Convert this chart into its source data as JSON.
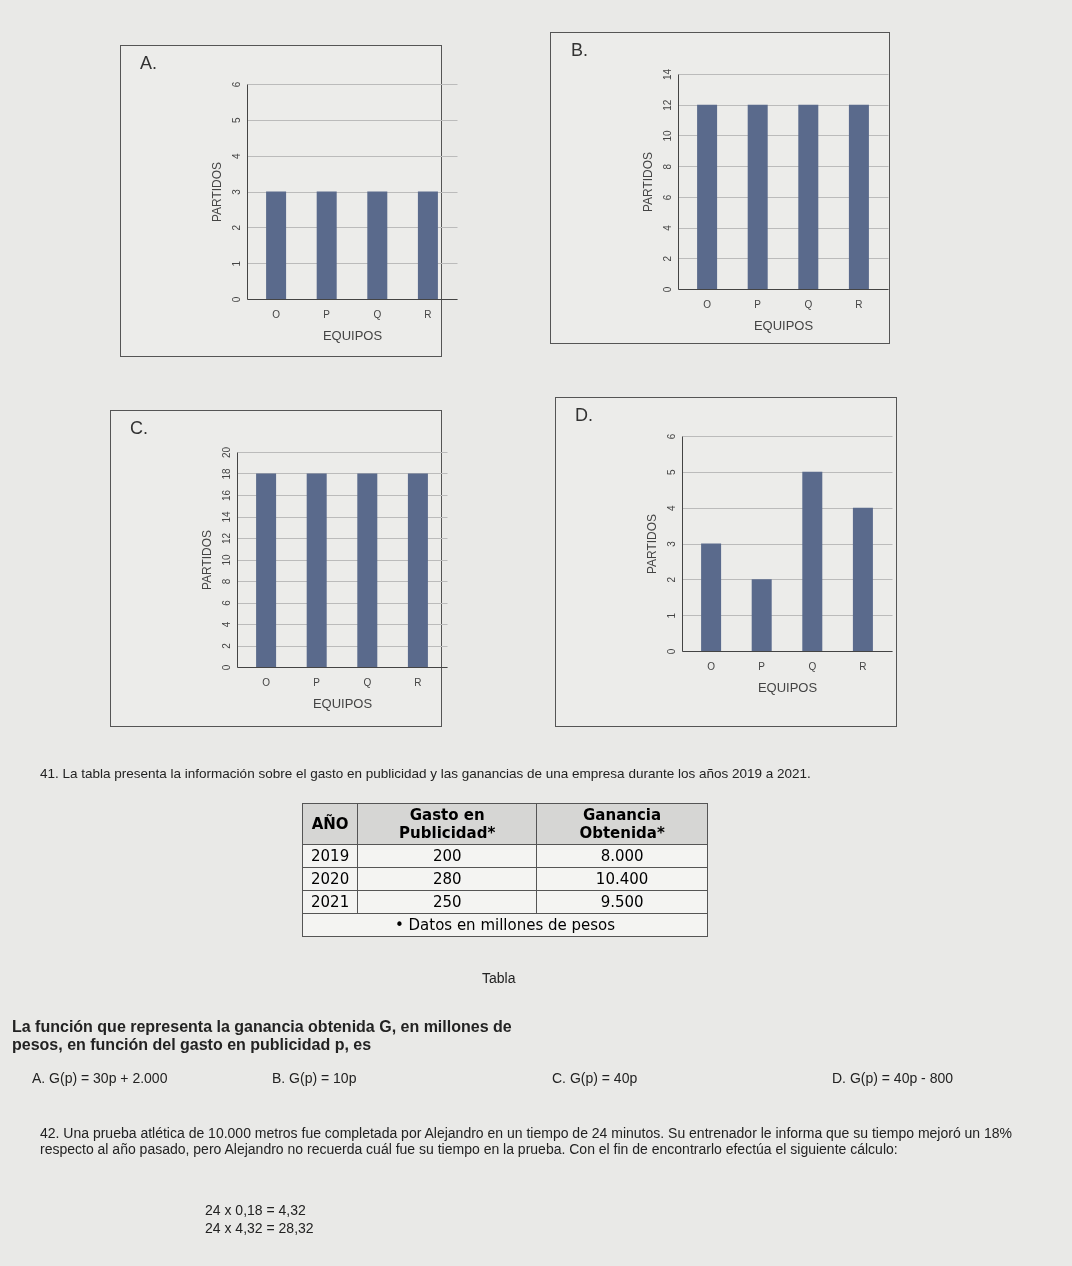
{
  "chart_data": [
    {
      "type": "bar",
      "title": "A.",
      "xlabel": "EQUIPOS",
      "ylabel": "PARTIDOS",
      "categories": [
        "O",
        "P",
        "Q",
        "R"
      ],
      "values": [
        3,
        3,
        3,
        3
      ],
      "color": "#5a6a8c",
      "ylim": [
        0,
        6
      ],
      "yticks": [
        0,
        1,
        2,
        3,
        4,
        5,
        6
      ],
      "grid": "y"
    },
    {
      "type": "bar",
      "title": "B.",
      "xlabel": "EQUIPOS",
      "ylabel": "PARTIDOS",
      "categories": [
        "O",
        "P",
        "Q",
        "R"
      ],
      "values": [
        12,
        12,
        12,
        12
      ],
      "color": "#5a6a8c",
      "ylim": [
        0,
        14
      ],
      "yticks": [
        0,
        2,
        4,
        6,
        8,
        10,
        12,
        14
      ],
      "grid": "y"
    },
    {
      "type": "bar",
      "title": "C.",
      "xlabel": "EQUIPOS",
      "ylabel": "PARTIDOS",
      "categories": [
        "O",
        "P",
        "Q",
        "R"
      ],
      "values": [
        18,
        18,
        18,
        18
      ],
      "color": "#5a6a8c",
      "ylim": [
        0,
        20
      ],
      "yticks": [
        0,
        2,
        4,
        6,
        8,
        10,
        12,
        14,
        16,
        18,
        20
      ],
      "grid": "y"
    },
    {
      "type": "bar",
      "title": "D.",
      "xlabel": "EQUIPOS",
      "ylabel": "PARTIDOS",
      "categories": [
        "O",
        "P",
        "Q",
        "R"
      ],
      "values": [
        3,
        2,
        5,
        4
      ],
      "color": "#5a6a8c",
      "ylim": [
        0,
        6
      ],
      "yticks": [
        0,
        1,
        2,
        3,
        4,
        5,
        6
      ],
      "grid": "y"
    },
    {
      "type": "other",
      "title": "41. La tabla presenta la información sobre el gasto en publicidad y las ganancias de una empresa durante los años 2019 a 2021.",
      "annotations": [
        "AÑO",
        "Gasto en Publicidad*",
        "Ganancia Obtenida*",
        "2019",
        "200",
        "8.000",
        "2020",
        "280",
        "10.400",
        "2021",
        "250",
        "9.500",
        "• Datos en millones de pesos",
        "Tabla",
        "La función que representa la ganancia obtenida G, en millones de pesos, en función del gasto en publicidad p, es",
        "A. G(p) = 30p + 2.000",
        "B. G(p) = 10p",
        "C. G(p) = 40p",
        "D. G(p) = 40p - 800",
        "42. Una prueba atlética de 10.000 metros fue completada por Alejandro en un tiempo de 24 minutos. Su entrenador le informa que su tiempo mejoró un 18% respecto al año pasado, pero Alejandro no recuerda cuál fue su tiempo en la prueba. Con el fin de encontrarlo efectúa el siguiente cálculo:",
        "24 x 0,18 = 4,32",
        "24 x 4,32 = 28,32"
      ]
    }
  ]
}
